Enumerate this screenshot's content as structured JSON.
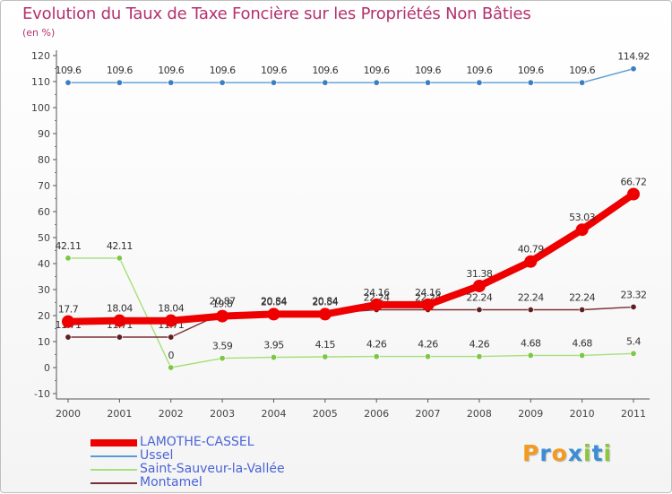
{
  "chart_data": {
    "type": "line",
    "title": "Evolution du Taux de Taxe Foncière sur les Propriétés Non Bâties",
    "subtitle": "(en %)",
    "xlabel": "",
    "ylabel": "(en %)",
    "ylim": [
      -10,
      120
    ],
    "yticks": [
      -10,
      0,
      10,
      20,
      30,
      40,
      50,
      60,
      70,
      80,
      90,
      100,
      110,
      120
    ],
    "categories": [
      "2000",
      "2001",
      "2002",
      "2003",
      "2004",
      "2005",
      "2006",
      "2007",
      "2008",
      "2009",
      "2010",
      "2011"
    ],
    "grid": false,
    "legend_position": "bottom-left",
    "series": [
      {
        "name": "Ussel",
        "color": "#5b9bd5",
        "point_color": "#3b7fc0",
        "values": [
          109.6,
          109.6,
          109.6,
          109.6,
          109.6,
          109.6,
          109.6,
          109.6,
          109.6,
          109.6,
          109.6,
          114.92
        ],
        "labels": [
          "109.6",
          "109.6",
          "109.6",
          "109.6",
          "109.6",
          "109.6",
          "109.6",
          "109.6",
          "109.6",
          "109.6",
          "109.6",
          "114.92"
        ]
      },
      {
        "name": "Saint-Sauveur-la-Vallée",
        "color": "#a6e07a",
        "point_color": "#7cc846",
        "values": [
          42.11,
          42.11,
          0,
          3.59,
          3.95,
          4.15,
          4.26,
          4.26,
          4.26,
          4.68,
          4.68,
          5.4
        ],
        "labels": [
          "42.11",
          "42.11",
          "0",
          "3.59",
          "3.95",
          "4.15",
          "4.26",
          "4.26",
          "4.26",
          "4.68",
          "4.68",
          "5.4"
        ]
      },
      {
        "name": "Montamel",
        "color": "#7a2e35",
        "point_color": "#5e1f24",
        "values": [
          11.71,
          11.71,
          11.71,
          20.87,
          20.84,
          20.84,
          22.24,
          22.24,
          22.24,
          22.24,
          22.24,
          23.32
        ],
        "labels": [
          "11.71",
          "11.71",
          "11.71",
          "20.87",
          "20.84",
          "20.84",
          "22.24",
          "22.24",
          "22.24",
          "22.24",
          "22.24",
          "23.32"
        ]
      },
      {
        "name": "LAMOTHE-CASSEL",
        "color": "#ee0000",
        "point_color": "#ee0000",
        "values": [
          17.7,
          18.04,
          18.04,
          19.8,
          20.54,
          20.54,
          24.16,
          24.16,
          31.38,
          40.79,
          53.03,
          66.72
        ],
        "labels": [
          "17.7",
          "18.04",
          "18.04",
          "19.8",
          "20.54",
          "20.54",
          "24.16",
          "24.16",
          "31.38",
          "40.79",
          "53.03",
          "66.72"
        ]
      }
    ],
    "legend": [
      {
        "name": "LAMOTHE-CASSEL",
        "color": "#ee0000"
      },
      {
        "name": "Ussel",
        "color": "#5b9bd5"
      },
      {
        "name": "Saint-Sauveur-la-Vallée",
        "color": "#a6e07a"
      },
      {
        "name": "Montamel",
        "color": "#7a2e35"
      }
    ]
  },
  "logo": {
    "letters": [
      "P",
      "r",
      "o",
      "x",
      "i",
      "t",
      "i"
    ],
    "colors": [
      "#f39a1f",
      "#3b8ed6",
      "#f39a1f",
      "#3b8ed6",
      "#8cc63f",
      "#3b8ed6",
      "#8cc63f"
    ]
  }
}
